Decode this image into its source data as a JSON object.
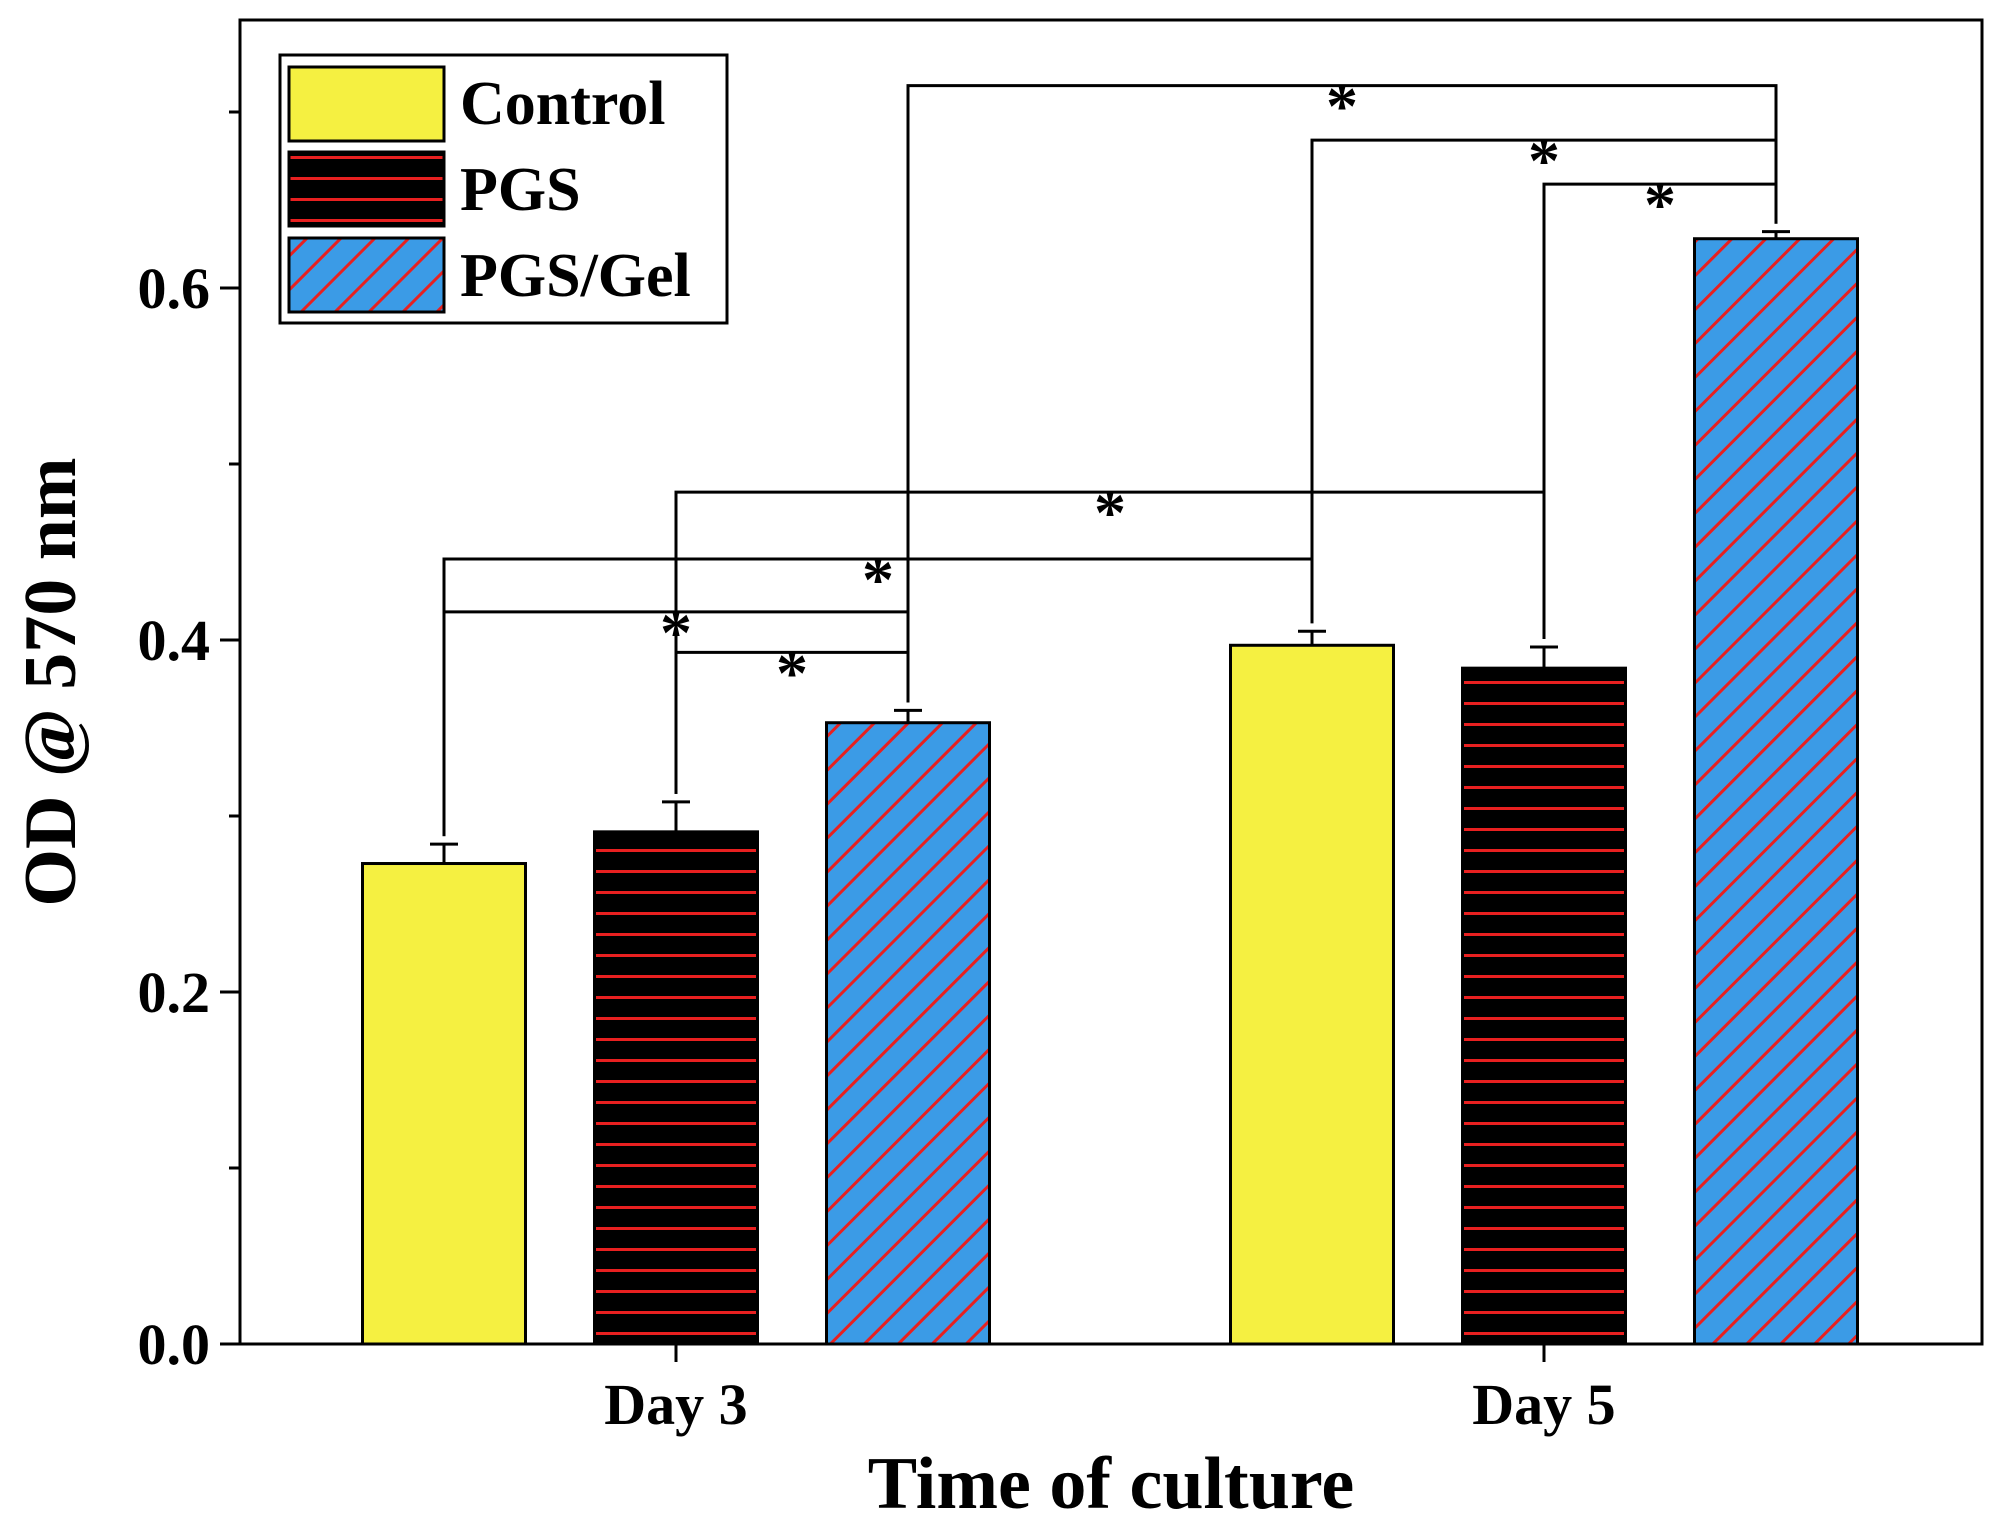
{
  "chart_data": {
    "type": "bar",
    "title": "",
    "xlabel": "Time of culture",
    "ylabel": "OD @ 570 nm",
    "categories": [
      "Day 3",
      "Day 5"
    ],
    "ylim": [
      0.0,
      0.75
    ],
    "yticks": [
      {
        "value": 0.0,
        "label": "0.0"
      },
      {
        "value": 0.2,
        "label": "0.2"
      },
      {
        "value": 0.4,
        "label": "0.4"
      },
      {
        "value": 0.6,
        "label": "0.6"
      }
    ],
    "grid": false,
    "legend_position": "top-left",
    "series": [
      {
        "name": "Control",
        "values": [
          0.273,
          0.397
        ],
        "errors": [
          0.011,
          0.008
        ],
        "color": "#f5f041",
        "pattern": "solid"
      },
      {
        "name": "PGS",
        "values": [
          0.291,
          0.384
        ],
        "errors": [
          0.017,
          0.012
        ],
        "color": "#000000",
        "stripe_color": "#e82020",
        "pattern": "horizontal"
      },
      {
        "name": "PGS/Gel",
        "values": [
          0.353,
          0.628
        ],
        "errors": [
          0.007,
          0.004
        ],
        "color": "#3b9be6",
        "stripe_color": "#e82020",
        "pattern": "diagonal"
      }
    ],
    "significance": [
      {
        "from": [
          0,
          1
        ],
        "to": [
          0,
          2
        ],
        "level": 0.393,
        "label": "*"
      },
      {
        "from": [
          0,
          0
        ],
        "to": [
          0,
          2
        ],
        "level": 0.416,
        "label": "*"
      },
      {
        "from": [
          0,
          0
        ],
        "to": [
          1,
          0
        ],
        "level": 0.446,
        "label": "*"
      },
      {
        "from": [
          0,
          1
        ],
        "to": [
          1,
          1
        ],
        "level": 0.484,
        "label": "*"
      },
      {
        "from": [
          1,
          1
        ],
        "to": [
          1,
          2
        ],
        "level": 0.659,
        "label": "*"
      },
      {
        "from": [
          1,
          0
        ],
        "to": [
          1,
          2
        ],
        "level": 0.684,
        "label": "*"
      },
      {
        "from": [
          0,
          2
        ],
        "to": [
          1,
          2
        ],
        "level": 0.715,
        "label": "*"
      }
    ]
  }
}
